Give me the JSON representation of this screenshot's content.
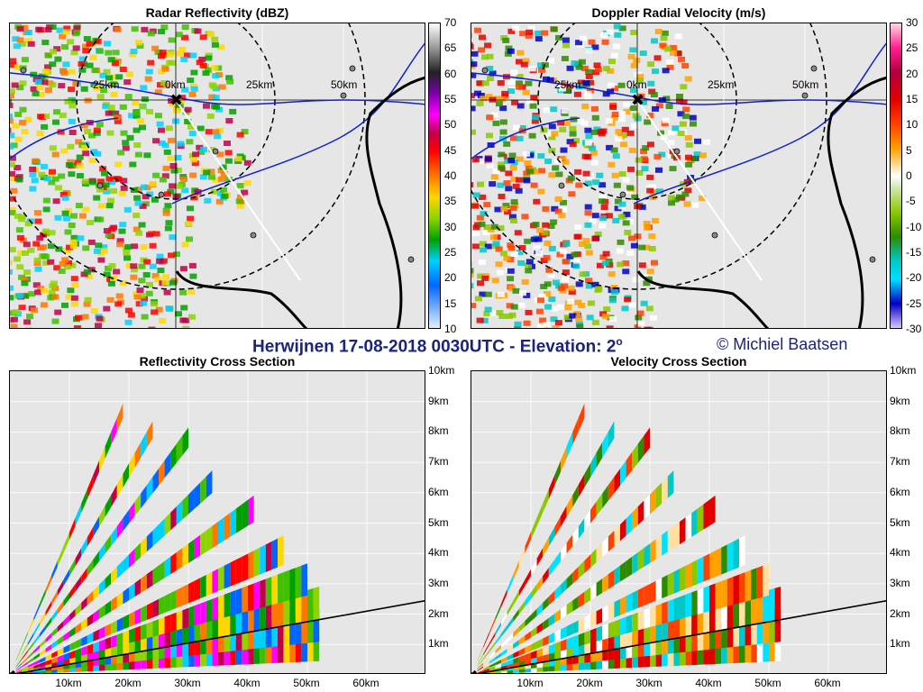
{
  "figure": {
    "main_title": "Herwijnen 17-08-2018 0030UTC - Elevation: 2",
    "main_title_sup": "o",
    "credit": "© Michiel Baatsen"
  },
  "chart_data": [
    {
      "type": "heatmap",
      "title": "Radar Reflectivity (dBZ)",
      "colorbar": {
        "ticks": [
          70,
          65,
          60,
          55,
          50,
          45,
          40,
          35,
          30,
          25,
          20,
          15,
          10
        ]
      },
      "range_ring_labels": [
        "25km",
        "0km",
        "25km",
        "50km"
      ],
      "grid": true
    },
    {
      "type": "heatmap",
      "title": "Doppler Radial Velocity (m/s)",
      "colorbar": {
        "ticks": [
          30,
          25,
          20,
          15,
          10,
          5,
          0,
          -5,
          -10,
          -15,
          -20,
          -25,
          -30
        ]
      },
      "range_ring_labels": [
        "25km",
        "0km",
        "25km",
        "50km"
      ],
      "grid": true
    },
    {
      "type": "heatmap",
      "title": "Reflectivity Cross Section",
      "x_ticks": [
        "10km",
        "20km",
        "30km",
        "40km",
        "50km",
        "60km"
      ],
      "y_ticks": [
        "10km",
        "9km",
        "8km",
        "7km",
        "6km",
        "5km",
        "4km",
        "3km",
        "2km",
        "1km"
      ],
      "xlim": [
        0,
        70
      ],
      "ylim": [
        0,
        10
      ],
      "grid": true
    },
    {
      "type": "heatmap",
      "title": "Velocity Cross Section",
      "x_ticks": [
        "10km",
        "20km",
        "30km",
        "40km",
        "50km",
        "60km"
      ],
      "y_ticks": [
        "10km",
        "9km",
        "8km",
        "7km",
        "6km",
        "5km",
        "4km",
        "3km",
        "2km",
        "1km"
      ],
      "xlim": [
        0,
        70
      ],
      "ylim": [
        0,
        10
      ],
      "grid": true
    }
  ]
}
